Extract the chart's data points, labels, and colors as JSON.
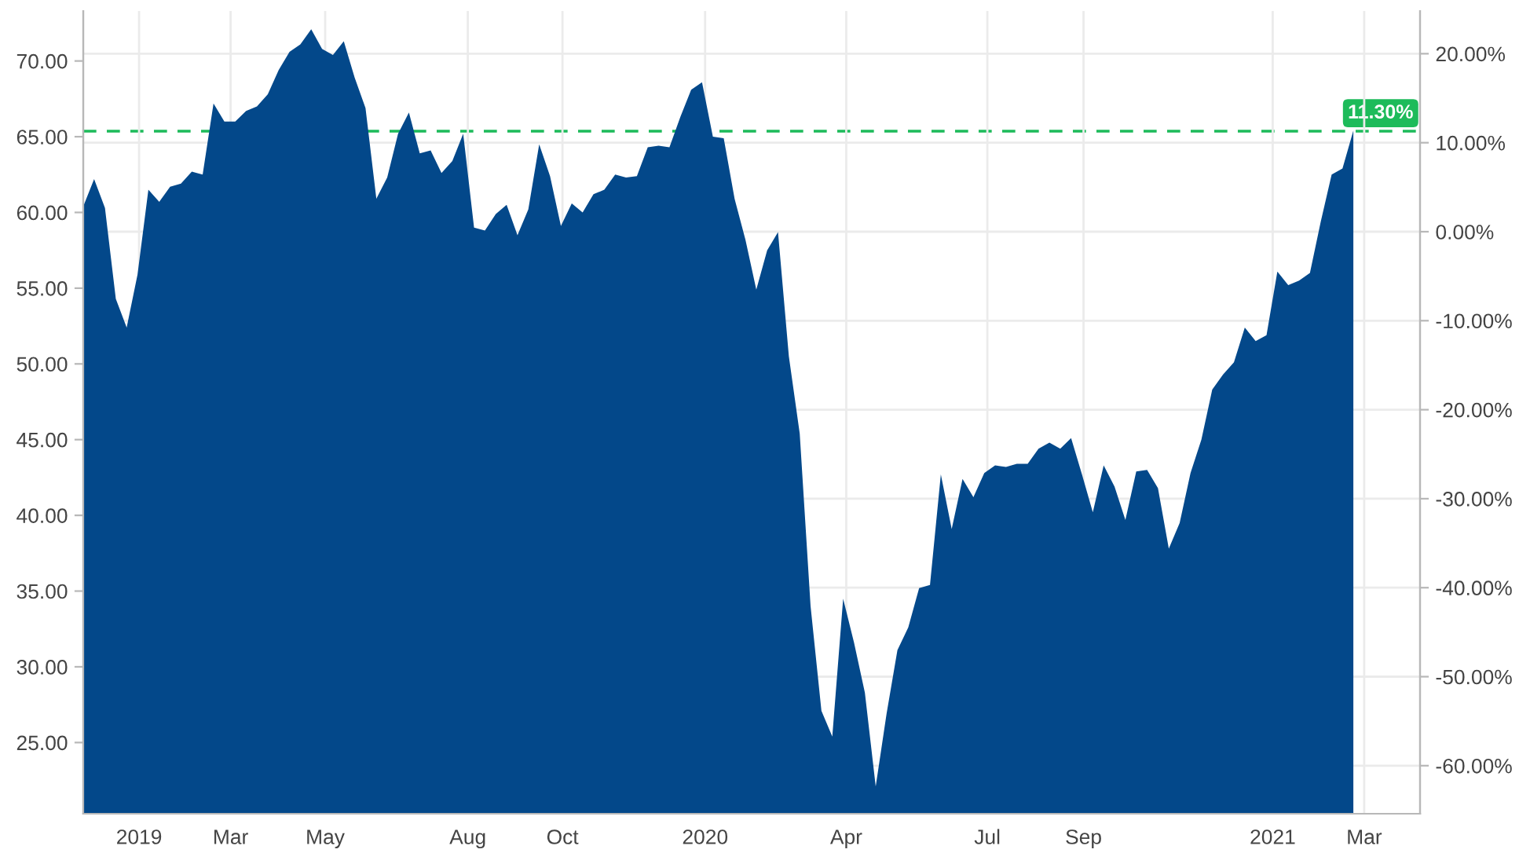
{
  "chart_data": {
    "type": "area",
    "x": [
      "2018-11-26",
      "2018-12-03",
      "2018-12-10",
      "2018-12-17",
      "2018-12-24",
      "2018-12-31",
      "2019-01-07",
      "2019-01-14",
      "2019-01-21",
      "2019-01-28",
      "2019-02-04",
      "2019-02-11",
      "2019-02-18",
      "2019-02-25",
      "2019-03-04",
      "2019-03-11",
      "2019-03-18",
      "2019-03-25",
      "2019-04-01",
      "2019-04-08",
      "2019-04-15",
      "2019-04-22",
      "2019-04-29",
      "2019-05-06",
      "2019-05-13",
      "2019-05-20",
      "2019-05-27",
      "2019-06-03",
      "2019-06-10",
      "2019-06-17",
      "2019-06-24",
      "2019-07-01",
      "2019-07-08",
      "2019-07-15",
      "2019-07-22",
      "2019-07-29",
      "2019-08-05",
      "2019-08-12",
      "2019-08-19",
      "2019-08-26",
      "2019-09-02",
      "2019-09-09",
      "2019-09-16",
      "2019-09-23",
      "2019-09-30",
      "2019-10-07",
      "2019-10-14",
      "2019-10-21",
      "2019-10-28",
      "2019-11-04",
      "2019-11-11",
      "2019-11-18",
      "2019-11-25",
      "2019-12-02",
      "2019-12-09",
      "2019-12-16",
      "2019-12-23",
      "2019-12-30",
      "2020-01-06",
      "2020-01-13",
      "2020-01-20",
      "2020-01-27",
      "2020-02-03",
      "2020-02-10",
      "2020-02-17",
      "2020-02-24",
      "2020-03-02",
      "2020-03-09",
      "2020-03-16",
      "2020-03-23",
      "2020-03-30",
      "2020-04-06",
      "2020-04-13",
      "2020-04-20",
      "2020-04-27",
      "2020-05-04",
      "2020-05-11",
      "2020-05-18",
      "2020-05-25",
      "2020-06-01",
      "2020-06-08",
      "2020-06-15",
      "2020-06-22",
      "2020-06-29",
      "2020-07-06",
      "2020-07-13",
      "2020-07-20",
      "2020-07-27",
      "2020-08-03",
      "2020-08-10",
      "2020-08-17",
      "2020-08-24",
      "2020-08-31",
      "2020-09-07",
      "2020-09-14",
      "2020-09-21",
      "2020-09-28",
      "2020-10-05",
      "2020-10-12",
      "2020-10-19",
      "2020-10-26",
      "2020-11-02",
      "2020-11-09",
      "2020-11-16",
      "2020-11-23",
      "2020-11-30",
      "2020-12-07",
      "2020-12-14",
      "2020-12-21",
      "2020-12-28",
      "2021-01-04",
      "2021-01-11",
      "2021-01-18",
      "2021-01-25",
      "2021-02-01",
      "2021-02-08",
      "2021-02-15",
      "2021-02-22"
    ],
    "series": [
      {
        "color": "#03488a",
        "values": [
          60.4,
          62.2,
          60.3,
          54.3,
          52.4,
          55.9,
          61.5,
          60.7,
          61.7,
          61.9,
          62.7,
          62.5,
          67.2,
          66.0,
          66.0,
          66.7,
          67.0,
          67.8,
          69.4,
          70.6,
          71.1,
          72.1,
          70.8,
          70.4,
          71.3,
          68.9,
          66.9,
          60.9,
          62.3,
          65.2,
          66.6,
          63.9,
          64.1,
          62.6,
          63.4,
          65.2,
          59.0,
          58.8,
          59.9,
          60.5,
          58.5,
          60.2,
          64.5,
          62.4,
          59.1,
          60.6,
          60.0,
          61.2,
          61.5,
          62.5,
          62.3,
          62.4,
          64.3,
          64.4,
          64.3,
          66.3,
          68.1,
          68.6,
          65.0,
          64.9,
          60.9,
          58.2,
          54.9,
          57.5,
          58.7,
          50.5,
          45.4,
          34.0,
          27.1,
          25.4,
          34.5,
          31.6,
          28.3,
          22.1,
          26.9,
          31.1,
          32.6,
          35.2,
          35.4,
          42.7,
          39.1,
          42.4,
          41.2,
          42.8,
          43.3,
          43.2,
          43.4,
          43.4,
          44.4,
          44.8,
          44.4,
          45.1,
          42.7,
          40.2,
          43.3,
          41.9,
          39.7,
          42.9,
          43.0,
          41.8,
          37.8,
          39.5,
          42.8,
          45.0,
          48.3,
          49.3,
          50.1,
          52.4,
          51.5,
          51.9,
          56.1,
          55.2,
          55.5,
          56.0,
          59.4,
          62.5,
          62.9,
          65.4
        ]
      }
    ],
    "xlim": [
      "2018-11-26",
      "2021-04-06"
    ],
    "xticks": [
      {
        "value": "2019-01-01",
        "label": "2019"
      },
      {
        "value": "2019-03-01",
        "label": "Mar"
      },
      {
        "value": "2019-05-01",
        "label": "May"
      },
      {
        "value": "2019-08-01",
        "label": "Aug"
      },
      {
        "value": "2019-10-01",
        "label": "Oct"
      },
      {
        "value": "2020-01-01",
        "label": "2020"
      },
      {
        "value": "2020-04-01",
        "label": "Apr"
      },
      {
        "value": "2020-07-01",
        "label": "Jul"
      },
      {
        "value": "2020-09-01",
        "label": "Sep"
      },
      {
        "value": "2021-01-01",
        "label": "2021"
      },
      {
        "value": "2021-03-01",
        "label": "Mar"
      }
    ],
    "ylim": [
      20.3,
      73.3
    ],
    "yticks": [
      {
        "value": 25,
        "label": "25.00"
      },
      {
        "value": 30,
        "label": "30.00"
      },
      {
        "value": 35,
        "label": "35.00"
      },
      {
        "value": 40,
        "label": "40.00"
      },
      {
        "value": 45,
        "label": "45.00"
      },
      {
        "value": 50,
        "label": "50.00"
      },
      {
        "value": 55,
        "label": "55.00"
      },
      {
        "value": 60,
        "label": "60.00"
      },
      {
        "value": 65,
        "label": "65.00"
      },
      {
        "value": 70,
        "label": "70.00"
      }
    ],
    "y2lim": [
      -65.4,
      24.8
    ],
    "y2ticks": [
      {
        "value": -60,
        "label": "-60.00%"
      },
      {
        "value": -50,
        "label": "-50.00%"
      },
      {
        "value": -40,
        "label": "-40.00%"
      },
      {
        "value": -30,
        "label": "-30.00%"
      },
      {
        "value": -20,
        "label": "-20.00%"
      },
      {
        "value": -10,
        "label": "-10.00%"
      },
      {
        "value": 0,
        "label": "0.00%"
      },
      {
        "value": 10,
        "label": "10.00%"
      },
      {
        "value": 20,
        "label": "20.00%"
      }
    ],
    "ref_lines": [
      {
        "axis": "y2",
        "value": 11.3,
        "label": "11.30%",
        "color": "#1dbb5a",
        "line_style": "dashed"
      }
    ],
    "grid": true,
    "legend": false
  }
}
